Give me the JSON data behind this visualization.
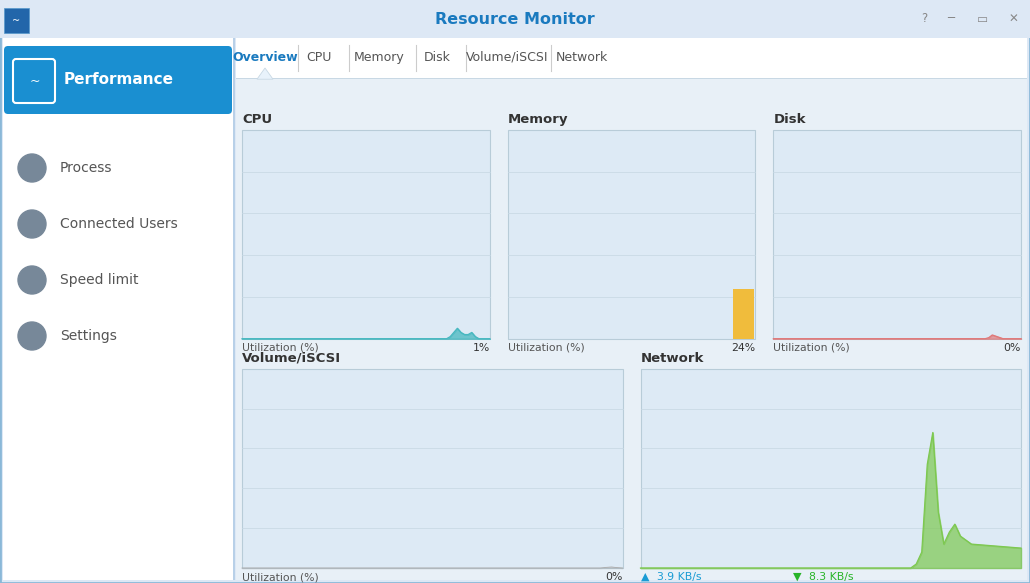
{
  "title": "Resource Monitor",
  "title_color": "#1a7abf",
  "titlebar_bg": "#dde8f5",
  "content_bg": "#e8f0f7",
  "sidebar_bg": "#ffffff",
  "sidebar_border_color": "#b8d0e8",
  "perf_btn_color": "#1a8fd1",
  "perf_btn_text": "Performance",
  "perf_btn_text_color": "#ffffff",
  "sidebar_items": [
    "Process",
    "Connected Users",
    "Speed limit",
    "Settings"
  ],
  "sidebar_text_color": "#555555",
  "tabs": [
    "Overview",
    "CPU",
    "Memory",
    "Disk",
    "Volume/iSCSI",
    "Network"
  ],
  "active_tab": "Overview",
  "active_tab_color": "#1a7abf",
  "tab_text_color": "#555555",
  "tab_sep_color": "#cccccc",
  "chart_bg": "#ddeaf5",
  "chart_border_color": "#b8ccd8",
  "chart_grid_color": "#c8d8e4",
  "charts_top": [
    {
      "title": "CPU",
      "label": "Utilization (%)",
      "value": "1%",
      "chart_type": "cpu"
    },
    {
      "title": "Memory",
      "label": "Utilization (%)",
      "value": "24%",
      "chart_type": "memory"
    },
    {
      "title": "Disk",
      "label": "Utilization (%)",
      "value": "0%",
      "chart_type": "disk"
    }
  ],
  "charts_bot": [
    {
      "title": "Volume/iSCSI",
      "label": "Utilization (%)",
      "value": "0%",
      "chart_type": "volume"
    },
    {
      "title": "Network",
      "label": null,
      "value": null,
      "chart_type": "network",
      "network_up": "3.9 KB/s",
      "network_down": "8.3 KB/s"
    }
  ],
  "cpu_color": "#48b8c0",
  "memory_bar_color": "#f0bc3c",
  "disk_color": "#e07878",
  "network_color": "#7dc850",
  "volume_color": "#aaaaaa",
  "network_up_color": "#1a9bd4",
  "network_down_color": "#28b428",
  "window_border_color": "#8ab8d8"
}
